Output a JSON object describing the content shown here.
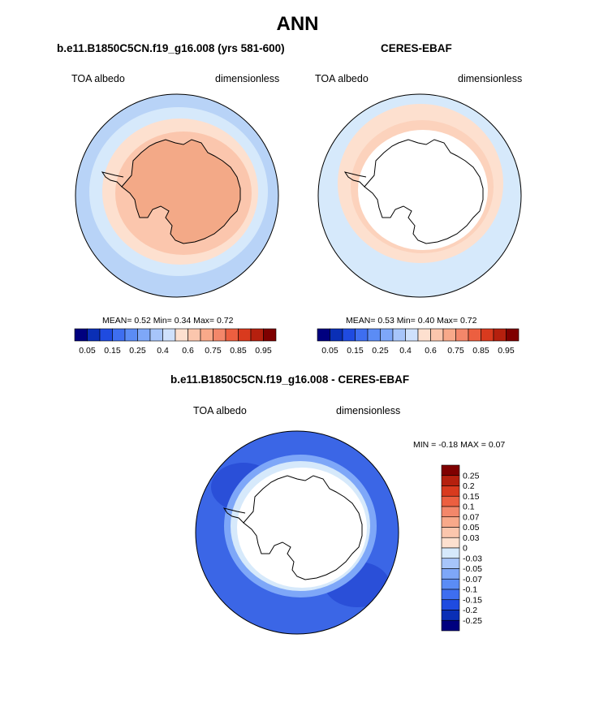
{
  "figure": {
    "title": "ANN"
  },
  "colors": {
    "ocean_light": "#d6e9fb",
    "ocean_mid": "#b8d3f7",
    "ice_pale": "#fde0cf",
    "land_model": "#f3a987",
    "diff_blue": "#3b66e6",
    "diff_blue_dark": "#2a4fd8",
    "coast": "#000000"
  },
  "chart_data": [
    {
      "type": "heatmap",
      "projection": "south-polar-stereographic",
      "title": "b.e11.B1850C5CN.f19_g16.008 (yrs 581-600)",
      "left_label": "TOA albedo",
      "right_label": "dimensionless",
      "stats": {
        "mean": "0.52",
        "min": "0.34",
        "max": "0.72"
      },
      "stats_text": {
        "mean_label": "MEAN=",
        "min_label": "Min=",
        "max_label": "Max="
      },
      "colorbar": {
        "orientation": "horizontal",
        "colors": [
          "#00007f",
          "#0a2fb6",
          "#1f4be0",
          "#3e6ef0",
          "#5b8cf5",
          "#7ea7f8",
          "#a7c5fa",
          "#cfe1fc",
          "#fde0cf",
          "#fbc6ad",
          "#f8a98a",
          "#f3876a",
          "#ec5f40",
          "#d93a1e",
          "#b5200e",
          "#7f0000"
        ],
        "tick_labels": [
          "0.05",
          "0.15",
          "0.25",
          "0.4",
          "0.6",
          "0.75",
          "0.85",
          "0.95"
        ]
      }
    },
    {
      "type": "heatmap",
      "projection": "south-polar-stereographic",
      "title": "CERES-EBAF",
      "left_label": "TOA albedo",
      "right_label": "dimensionless",
      "stats": {
        "mean": "0.53",
        "min": "0.40",
        "max": "0.72"
      },
      "stats_text": {
        "mean_label": "MEAN=",
        "min_label": "Min=",
        "max_label": "Max="
      },
      "colorbar": {
        "orientation": "horizontal",
        "colors": [
          "#00007f",
          "#0a2fb6",
          "#1f4be0",
          "#3e6ef0",
          "#5b8cf5",
          "#7ea7f8",
          "#a7c5fa",
          "#cfe1fc",
          "#fde0cf",
          "#fbc6ad",
          "#f8a98a",
          "#f3876a",
          "#ec5f40",
          "#d93a1e",
          "#b5200e",
          "#7f0000"
        ],
        "tick_labels": [
          "0.05",
          "0.15",
          "0.25",
          "0.4",
          "0.6",
          "0.75",
          "0.85",
          "0.95"
        ]
      }
    },
    {
      "type": "heatmap",
      "projection": "south-polar-stereographic",
      "title": "b.e11.B1850C5CN.f19_g16.008 - CERES-EBAF",
      "left_label": "TOA albedo",
      "right_label": "dimensionless",
      "stats": {
        "min": "-0.18",
        "max": "0.07"
      },
      "stats_text": {
        "min_label": "MIN =",
        "max_label": "MAX ="
      },
      "colorbar": {
        "orientation": "vertical",
        "colors": [
          "#7f0000",
          "#b5200e",
          "#d93a1e",
          "#ec5f40",
          "#f3876a",
          "#f8a98a",
          "#fbc6ad",
          "#fde0cf",
          "#d6e9fb",
          "#a7c5fa",
          "#7ea7f8",
          "#5b8cf5",
          "#3e6ef0",
          "#1f4be0",
          "#0a2fb6",
          "#00007f"
        ],
        "tick_labels": [
          "0.25",
          "0.2",
          "0.15",
          "0.1",
          "0.07",
          "0.05",
          "0.03",
          "0",
          "-0.03",
          "-0.05",
          "-0.07",
          "-0.1",
          "-0.15",
          "-0.2",
          "-0.25"
        ]
      }
    }
  ]
}
